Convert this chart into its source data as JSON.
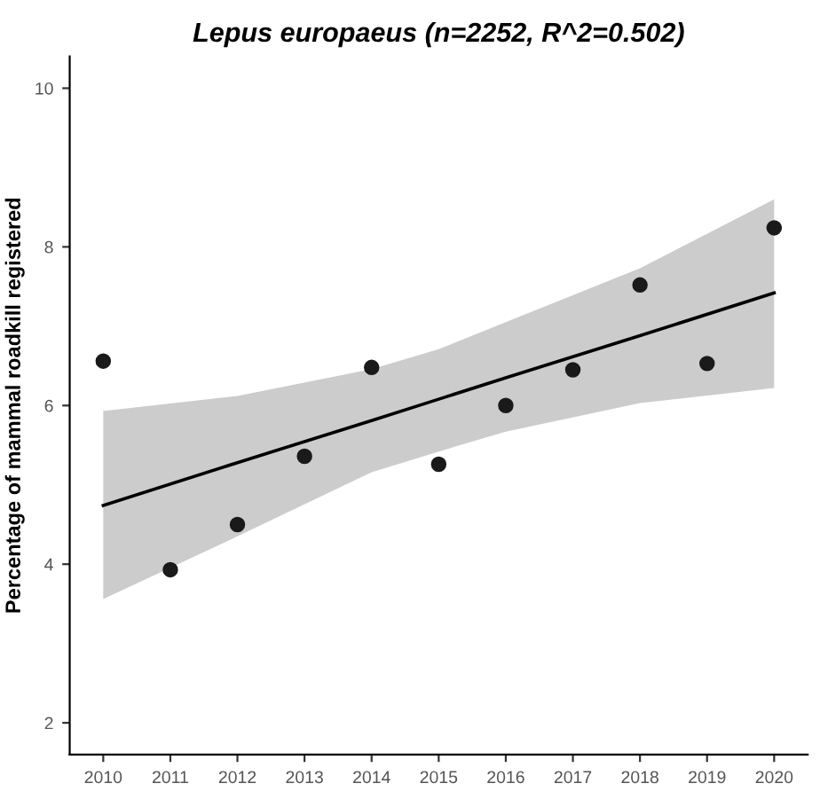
{
  "chart_data": {
    "type": "scatter",
    "title": "Lepus europaeus (n=2252, R^2=0.502)",
    "ylabel": "Percentage of mammal roadkill registered",
    "x": [
      2010,
      2011,
      2012,
      2013,
      2014,
      2015,
      2016,
      2017,
      2018,
      2019,
      2020
    ],
    "series": [
      {
        "color": "#1a1a1a",
        "marker": "circle",
        "values": [
          6.56,
          3.93,
          4.5,
          5.36,
          6.48,
          5.26,
          6.0,
          6.45,
          7.52,
          6.53,
          8.24
        ]
      },
      {
        "type": "line",
        "color": "#000000",
        "marker": "none",
        "x": [
          2010,
          2012,
          2014,
          2015,
          2016,
          2018,
          2020
        ],
        "values": [
          4.74,
          5.28,
          5.81,
          6.08,
          6.35,
          6.88,
          7.42
        ],
        "lower": [
          3.56,
          4.35,
          5.16,
          5.42,
          5.67,
          6.03,
          6.22
        ],
        "upper": [
          5.93,
          6.12,
          6.46,
          6.71,
          7.05,
          7.73,
          8.6
        ]
      }
    ],
    "xlim": [
      2009.5,
      2020.5
    ],
    "xticks": [
      2010,
      2011,
      2012,
      2013,
      2014,
      2015,
      2016,
      2017,
      2018,
      2019,
      2020
    ],
    "ylim": [
      1.6,
      10.4
    ],
    "yticks": [
      2,
      4,
      6,
      8,
      10
    ],
    "grid": false,
    "legend": false
  }
}
